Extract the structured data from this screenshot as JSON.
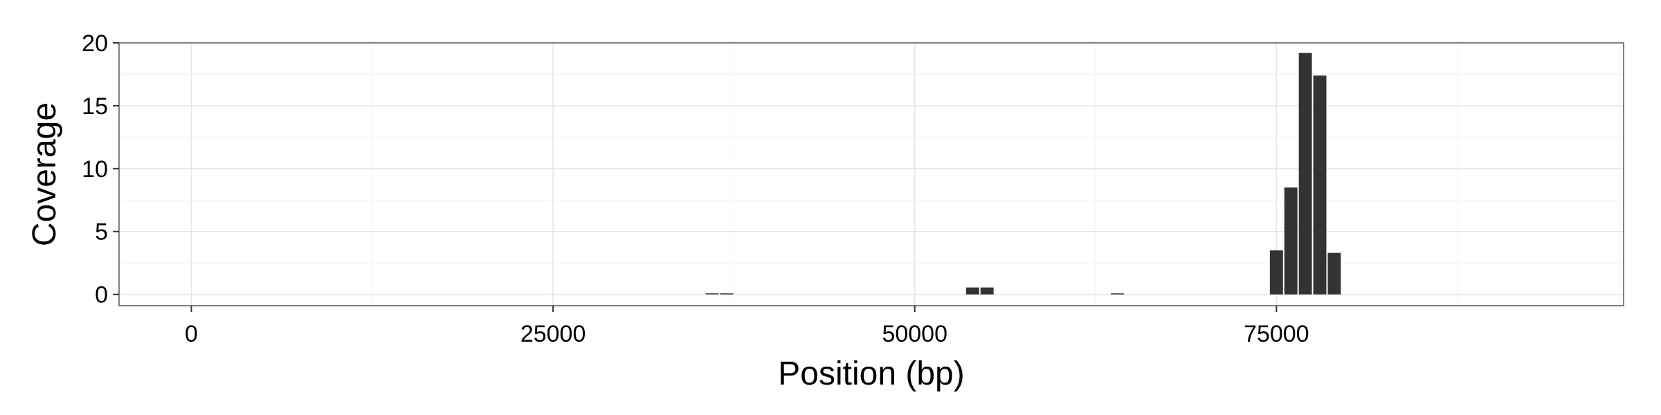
{
  "chart_data": {
    "type": "bar",
    "xlabel": "Position (bp)",
    "ylabel": "Coverage",
    "xlim": [
      -5000,
      99000
    ],
    "ylim": [
      -0.9,
      20
    ],
    "x_ticks": [
      0,
      25000,
      50000,
      75000
    ],
    "y_ticks": [
      0,
      5,
      10,
      15,
      20
    ],
    "grid": true,
    "bin_width": 1000,
    "bars": [
      {
        "x": 36000,
        "y": 0.08
      },
      {
        "x": 37000,
        "y": 0.08
      },
      {
        "x": 54000,
        "y": 0.55
      },
      {
        "x": 55000,
        "y": 0.55
      },
      {
        "x": 64000,
        "y": 0.08
      },
      {
        "x": 75000,
        "y": 3.5
      },
      {
        "x": 76000,
        "y": 8.5
      },
      {
        "x": 77000,
        "y": 19.2
      },
      {
        "x": 78000,
        "y": 17.4
      },
      {
        "x": 79000,
        "y": 3.3
      }
    ],
    "colors": {
      "bar": "#333333",
      "grid_major": "#e5e5e5",
      "grid_minor": "#f2f2f2",
      "panel_border": "#7f7f7f"
    }
  }
}
